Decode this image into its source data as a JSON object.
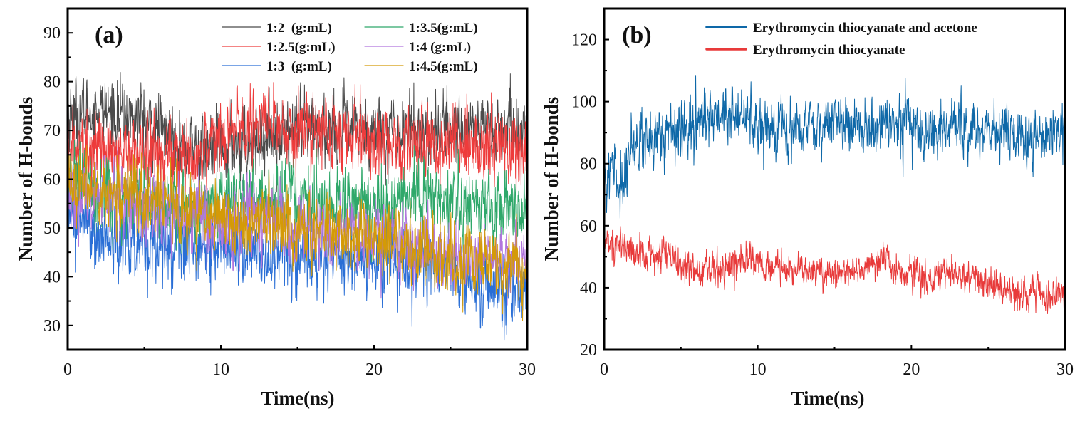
{
  "chart_data": [
    {
      "type": "line",
      "panel_label": "(a)",
      "title": "",
      "xlabel": "Time(ns)",
      "ylabel": "Number of H-bonds",
      "xlim": [
        0,
        30
      ],
      "ylim": [
        25,
        95
      ],
      "xticks": [
        0,
        10,
        20,
        30
      ],
      "xtick_labels": [
        "0",
        "10",
        "20",
        "30"
      ],
      "x_minor_step": 5,
      "yticks": [
        30,
        40,
        50,
        60,
        70,
        80,
        90
      ],
      "ytick_labels": [
        "30",
        "40",
        "50",
        "60",
        "70",
        "80",
        "90"
      ],
      "y_minor_step": 5,
      "grid": false,
      "legend_position": "top-right",
      "legend_columns": 2,
      "series": [
        {
          "name": "1:2  (g:mL)",
          "color": "#4a4a4a",
          "noise": 4.0,
          "trend_x": [
            0,
            2,
            5,
            8,
            10,
            13,
            16,
            20,
            24,
            27,
            30
          ],
          "trend_y": [
            73,
            74,
            72,
            66,
            66,
            69,
            70,
            70,
            70,
            71,
            69
          ]
        },
        {
          "name": "1:2.5(g:mL)",
          "color": "#ee3b3b",
          "noise": 4.0,
          "trend_x": [
            0,
            2,
            5,
            8,
            10,
            13,
            16,
            20,
            24,
            27,
            30
          ],
          "trend_y": [
            66,
            67,
            66,
            64,
            70,
            71,
            70,
            68,
            67,
            66,
            66
          ]
        },
        {
          "name": "1:3  (g:mL)",
          "color": "#2a6fd6",
          "noise": 4.0,
          "trend_x": [
            0,
            2,
            5,
            8,
            10,
            13,
            16,
            20,
            24,
            27,
            30
          ],
          "trend_y": [
            54,
            49,
            46,
            47,
            46,
            44,
            44,
            44,
            42,
            38,
            36
          ]
        },
        {
          "name": "1:3.5(g:mL)",
          "color": "#2fa86a",
          "noise": 4.0,
          "trend_x": [
            0,
            2,
            5,
            8,
            10,
            13,
            16,
            20,
            24,
            27,
            30
          ],
          "trend_y": [
            61,
            57,
            56,
            53,
            56,
            56,
            55,
            55,
            56,
            54,
            54
          ]
        },
        {
          "name": "1:4 (g:mL)",
          "color": "#b175dd",
          "noise": 4.0,
          "trend_x": [
            0,
            2,
            5,
            8,
            10,
            13,
            16,
            20,
            24,
            27,
            30
          ],
          "trend_y": [
            57,
            56,
            54,
            52,
            51,
            52,
            50,
            48,
            45,
            44,
            42
          ]
        },
        {
          "name": "1:4.5(g:mL)",
          "color": "#d49a07",
          "noise": 4.0,
          "trend_x": [
            0,
            2,
            5,
            8,
            10,
            13,
            16,
            20,
            24,
            27,
            30
          ],
          "trend_y": [
            60,
            57,
            57,
            53,
            52,
            51,
            49,
            47,
            45,
            43,
            42
          ]
        }
      ]
    },
    {
      "type": "line",
      "panel_label": "(b)",
      "title": "",
      "xlabel": "Time(ns)",
      "ylabel": "Number of H-bonds",
      "xlim": [
        0,
        30
      ],
      "ylim": [
        20,
        130
      ],
      "xticks": [
        0,
        10,
        20,
        30
      ],
      "xtick_labels": [
        "0",
        "10",
        "20",
        "30"
      ],
      "x_minor_step": 5,
      "yticks": [
        20,
        40,
        60,
        80,
        100,
        120
      ],
      "ytick_labels": [
        "20",
        "40",
        "60",
        "80",
        "100",
        "120"
      ],
      "y_minor_step": 10,
      "grid": false,
      "legend_position": "top-right",
      "legend_columns": 1,
      "series": [
        {
          "name": "Erythromycin thiocyanate and acetone",
          "color": "#0e68a8",
          "noise": 5.0,
          "trend_x": [
            0,
            0.5,
            1.2,
            1.6,
            3,
            5,
            7,
            9,
            11,
            13,
            15,
            17,
            19,
            21,
            23,
            25,
            27,
            30
          ],
          "trend_y": [
            74,
            78,
            72,
            86,
            88,
            90,
            95,
            95,
            92,
            92,
            93,
            91,
            94,
            90,
            92,
            90,
            89,
            92
          ]
        },
        {
          "name": "Erythromycin thiocyanate",
          "color": "#e83a3a",
          "noise": 3.0,
          "trend_x": [
            0,
            1,
            2,
            4,
            6,
            8,
            9.5,
            11,
            13,
            15,
            17,
            18,
            19,
            21,
            23,
            25,
            27,
            30
          ],
          "trend_y": [
            54,
            55,
            50,
            50,
            45,
            46,
            50,
            46,
            45,
            45,
            46,
            50,
            46,
            43,
            45,
            41,
            38,
            37
          ]
        }
      ]
    }
  ]
}
